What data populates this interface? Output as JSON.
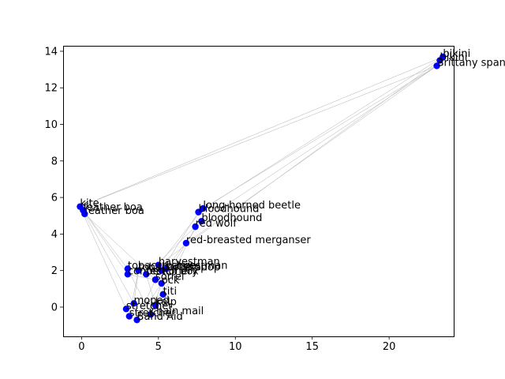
{
  "chart_data": {
    "type": "scatter",
    "title": "",
    "xlabel": "",
    "ylabel": "",
    "xlim": [
      -1.2,
      24.2
    ],
    "ylim": [
      -1.6,
      14.3
    ],
    "xticks": [
      0,
      5,
      10,
      15,
      20
    ],
    "yticks": [
      0,
      2,
      4,
      6,
      8,
      10,
      12,
      14
    ],
    "grid": false,
    "marker_color": "#0000ff",
    "edge_color": "#b0b0b0",
    "points": [
      {
        "label": "bikini",
        "x": 23.5,
        "y": 13.7
      },
      {
        "label": "bikini",
        "x": 23.3,
        "y": 13.5
      },
      {
        "label": "Brittany spaniel",
        "x": 23.1,
        "y": 13.2
      },
      {
        "label": "kite",
        "x": -0.1,
        "y": 5.5
      },
      {
        "label": "feather boa",
        "x": 0.1,
        "y": 5.3
      },
      {
        "label": "feather boa",
        "x": 0.2,
        "y": 5.1
      },
      {
        "label": "long-horned beetle",
        "x": 7.9,
        "y": 5.4
      },
      {
        "label": "bloodhound",
        "x": 7.6,
        "y": 5.2
      },
      {
        "label": "bloodhound",
        "x": 7.8,
        "y": 4.7
      },
      {
        "label": "red wolf",
        "x": 7.4,
        "y": 4.4
      },
      {
        "label": "red-breasted merganser",
        "x": 6.8,
        "y": 3.5
      },
      {
        "label": "harvestman",
        "x": 5.0,
        "y": 2.3
      },
      {
        "label": "harvestman",
        "x": 5.5,
        "y": 2.1
      },
      {
        "label": "tobacco shop",
        "x": 3.0,
        "y": 2.1
      },
      {
        "label": "tobacco shop",
        "x": 3.7,
        "y": 2.0
      },
      {
        "label": "barbershop",
        "x": 5.2,
        "y": 2.0
      },
      {
        "label": "confectionery",
        "x": 3.0,
        "y": 1.8
      },
      {
        "label": "pencil box",
        "x": 4.2,
        "y": 1.8
      },
      {
        "label": "sorrel",
        "x": 4.8,
        "y": 1.5
      },
      {
        "label": "ock",
        "x": 5.2,
        "y": 1.3
      },
      {
        "label": "titi",
        "x": 5.3,
        "y": 0.7
      },
      {
        "label": "moped",
        "x": 3.4,
        "y": 0.2
      },
      {
        "label": "kelp",
        "x": 4.8,
        "y": 0.1
      },
      {
        "label": "stretcher",
        "x": 2.9,
        "y": -0.1
      },
      {
        "label": "chain mail",
        "x": 4.5,
        "y": -0.4
      },
      {
        "label": "stretcher",
        "x": 3.1,
        "y": -0.5
      },
      {
        "label": "Band Aid",
        "x": 3.6,
        "y": -0.7
      }
    ],
    "edges": [
      [
        3,
        0
      ],
      [
        3,
        2
      ],
      [
        4,
        13
      ],
      [
        4,
        16
      ],
      [
        5,
        18
      ],
      [
        5,
        21
      ],
      [
        3,
        23
      ],
      [
        2,
        6
      ],
      [
        2,
        8
      ],
      [
        2,
        10
      ],
      [
        1,
        11
      ],
      [
        0,
        7
      ],
      [
        6,
        11
      ],
      [
        7,
        15
      ],
      [
        8,
        12
      ],
      [
        9,
        17
      ],
      [
        10,
        19
      ],
      [
        9,
        20
      ],
      [
        11,
        13
      ],
      [
        12,
        14
      ],
      [
        15,
        17
      ],
      [
        16,
        18
      ],
      [
        13,
        24
      ],
      [
        14,
        25
      ],
      [
        17,
        22
      ],
      [
        18,
        26
      ],
      [
        19,
        24
      ],
      [
        20,
        23
      ],
      [
        21,
        22
      ],
      [
        22,
        25
      ],
      [
        19,
        26
      ],
      [
        15,
        20
      ],
      [
        14,
        21
      ]
    ]
  }
}
